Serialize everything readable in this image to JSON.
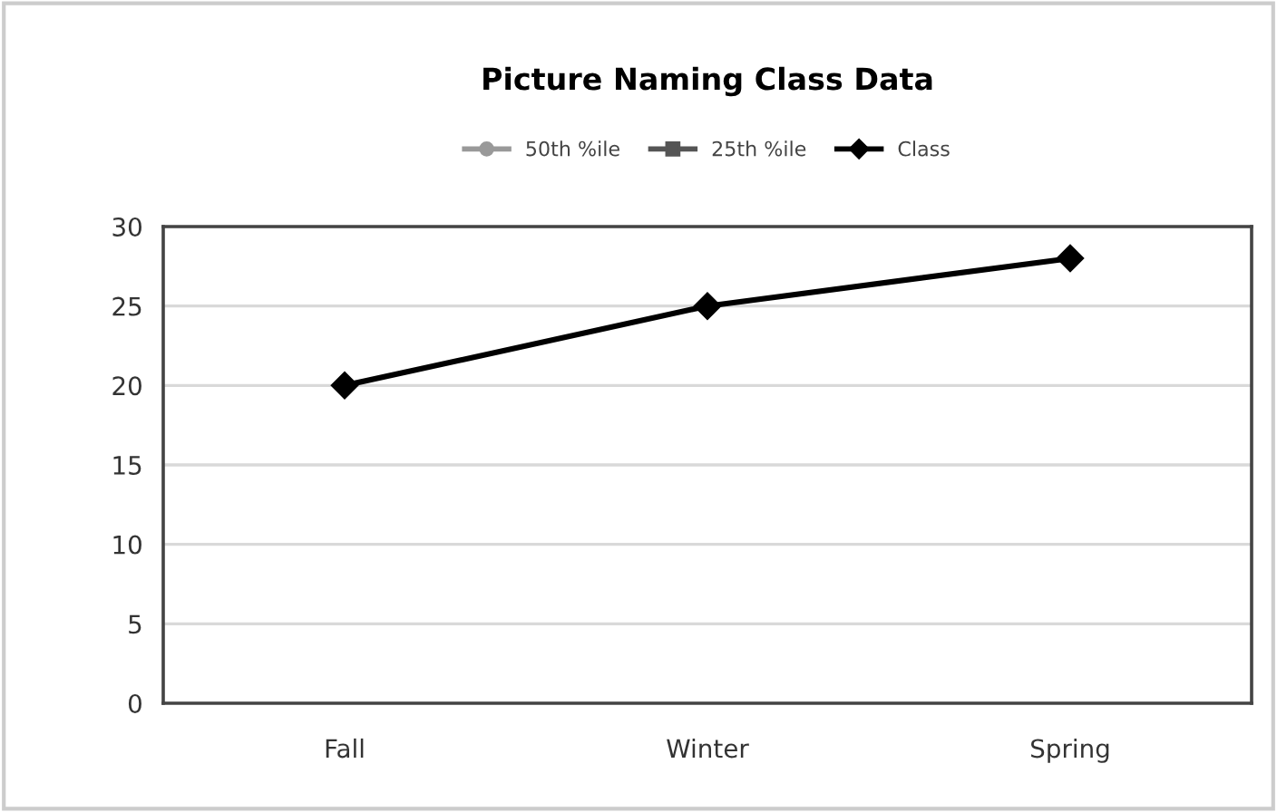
{
  "chart_data": {
    "type": "line",
    "title": "Picture Naming Class Data",
    "categories": [
      "Fall",
      "Winter",
      "Spring"
    ],
    "series": [
      {
        "name": "50th %ile",
        "color": "#999999",
        "marker": "circle",
        "values": [
          null,
          null,
          null
        ]
      },
      {
        "name": "25th %ile",
        "color": "#555555",
        "marker": "square",
        "values": [
          null,
          null,
          null
        ]
      },
      {
        "name": "Class",
        "color": "#000000",
        "marker": "diamond",
        "values": [
          20,
          25,
          28
        ]
      }
    ],
    "ylim": [
      0,
      30
    ],
    "yticks": [
      0,
      5,
      10,
      15,
      20,
      25,
      30
    ],
    "grid": "y",
    "legend": "top",
    "line_style": "solid"
  }
}
